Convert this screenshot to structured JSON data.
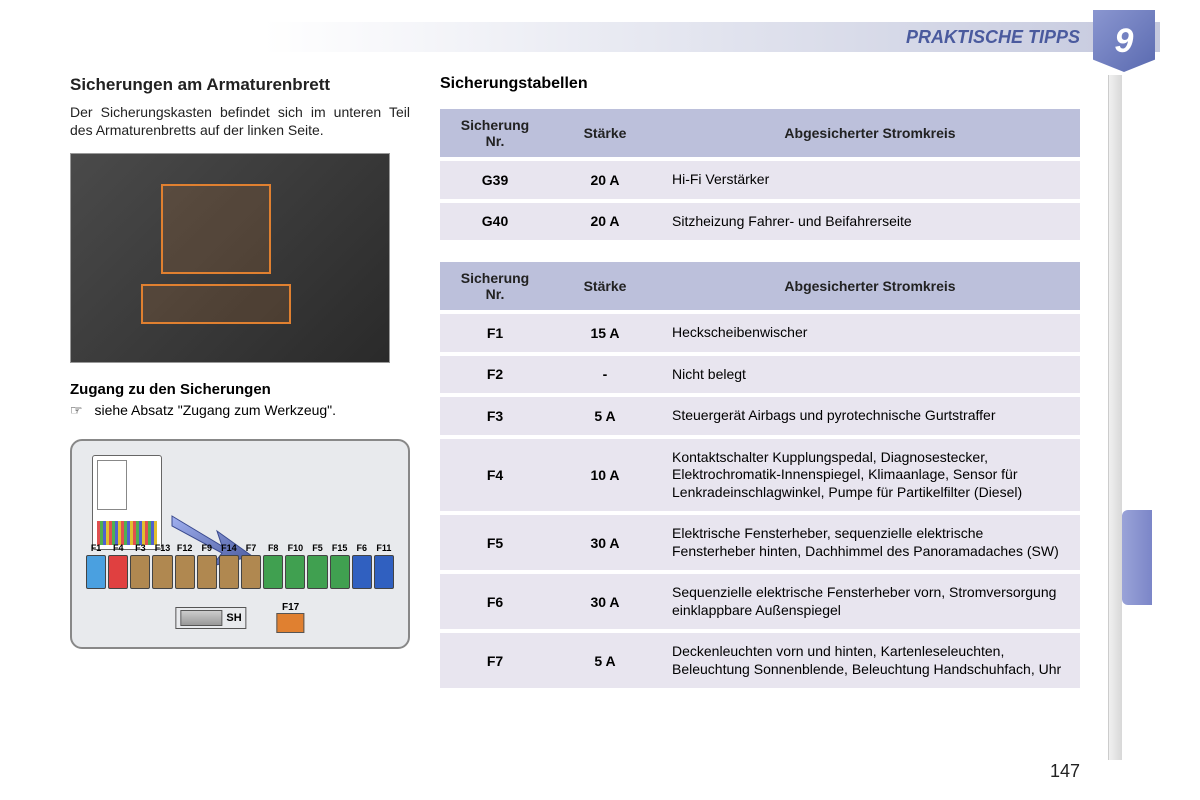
{
  "header": {
    "title": "PRAKTISCHE TIPPS",
    "chapter_number": "9"
  },
  "page_number": "147",
  "left": {
    "section_title": "Sicherungen am Armaturenbrett",
    "body_text": "Der Sicherungskasten befindet sich im unteren Teil des Armaturenbretts auf der linken Seite.",
    "subhead": "Zugang zu den Sicherungen",
    "ref_symbol": "☞",
    "ref_text": "siehe Absatz \"Zugang zum Werkzeug\"."
  },
  "fuse_diagram": {
    "labels": [
      "F1",
      "F4",
      "F3",
      "F13",
      "F12",
      "F9",
      "F14",
      "F7",
      "F8",
      "F10",
      "F5",
      "F15",
      "F6",
      "F11"
    ],
    "colors": [
      "#4aa0e0",
      "#e04040",
      "#b08850",
      "#b08850",
      "#b08850",
      "#b08850",
      "#b08850",
      "#b08850",
      "#40a050",
      "#40a050",
      "#40a050",
      "#40a050",
      "#3060c0",
      "#3060c0"
    ],
    "sh_label": "SH",
    "extra_fuse_label": "F17",
    "extra_fuse_color": "#e08030"
  },
  "tables": {
    "title": "Sicherungstabellen",
    "columns": {
      "nr": "Sicherung Nr.",
      "amp": "Stärke",
      "circuit": "Abgesicherter Stromkreis"
    },
    "table1_rows": [
      {
        "nr": "G39",
        "amp": "20 A",
        "circuit": "Hi-Fi Verstärker"
      },
      {
        "nr": "G40",
        "amp": "20 A",
        "circuit": "Sitzheizung Fahrer- und Beifahrerseite"
      }
    ],
    "table2_rows": [
      {
        "nr": "F1",
        "amp": "15 A",
        "circuit": "Heckscheibenwischer"
      },
      {
        "nr": "F2",
        "amp": "-",
        "circuit": "Nicht belegt"
      },
      {
        "nr": "F3",
        "amp": "5 A",
        "circuit": "Steuergerät Airbags und pyrotechnische Gurtstraffer"
      },
      {
        "nr": "F4",
        "amp": "10 A",
        "circuit": "Kontaktschalter Kupplungspedal, Diagnosestecker, Elektrochromatik-Innenspiegel, Klimaanlage, Sensor für Lenkradeinschlagwinkel, Pumpe für Partikelfilter (Diesel)"
      },
      {
        "nr": "F5",
        "amp": "30 A",
        "circuit": "Elektrische Fensterheber, sequenzielle elektrische Fensterheber hinten, Dachhimmel des Panoramadaches (SW)"
      },
      {
        "nr": "F6",
        "amp": "30 A",
        "circuit": "Sequenzielle elektrische Fensterheber vorn, Stromversorgung einklappbare Außenspiegel"
      },
      {
        "nr": "F7",
        "amp": "5 A",
        "circuit": "Deckenleuchten vorn und hinten, Kartenleseleuchten, Beleuchtung Sonnenblende, Beleuchtung Handschuhfach, Uhr"
      }
    ]
  },
  "colors": {
    "header_accent": "#4a5a9e",
    "table_header_bg": "#bcc0db",
    "table_row_bg": "#e8e5ef"
  }
}
